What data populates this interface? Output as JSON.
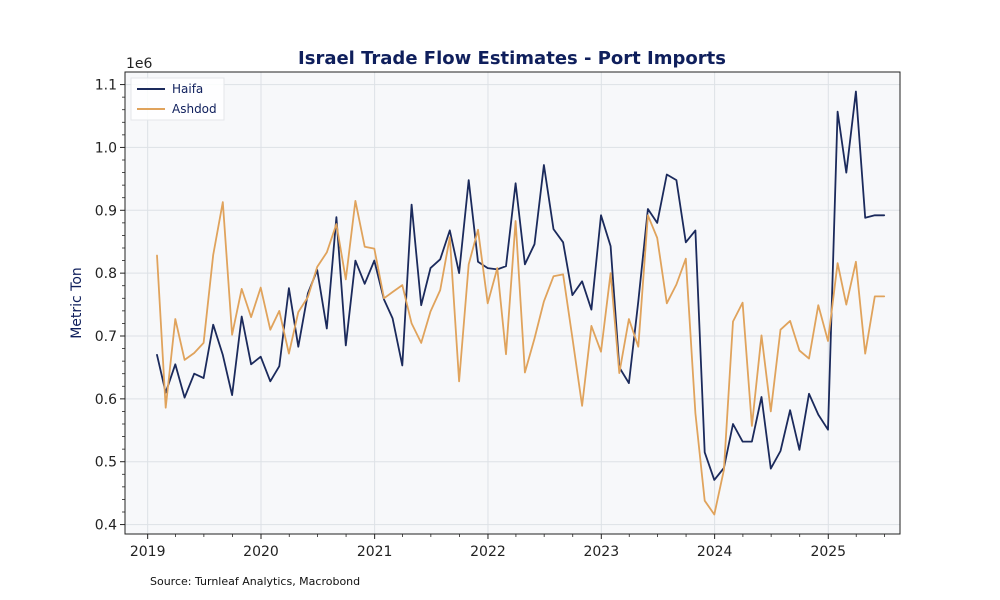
{
  "chart_data": {
    "type": "line",
    "title": "Israel Trade Flow Estimates - Port Imports",
    "ylabel": "Metric Ton",
    "xlabel": "",
    "y_offset_label": "1e6",
    "ylim": [
      0.385,
      1.12
    ],
    "y_ticks": [
      0.4,
      0.5,
      0.6,
      0.7,
      0.8,
      0.9,
      1.0,
      1.1
    ],
    "y_tick_labels": [
      "0.4",
      "0.5",
      "0.6",
      "0.7",
      "0.8",
      "0.9",
      "1.0",
      "1.1"
    ],
    "xlim": [
      "2018-10-20",
      "2025-08-20"
    ],
    "x_ticks": [
      "2019-01-01",
      "2020-01-01",
      "2021-01-01",
      "2022-01-01",
      "2023-01-01",
      "2024-01-01",
      "2025-01-01"
    ],
    "x_tick_labels": [
      "2019",
      "2020",
      "2021",
      "2022",
      "2023",
      "2024",
      "2025"
    ],
    "grid": true,
    "legend_position": "upper-left",
    "x": [
      "2019-01-31",
      "2019-02-28",
      "2019-03-31",
      "2019-04-30",
      "2019-05-31",
      "2019-06-30",
      "2019-07-31",
      "2019-08-31",
      "2019-09-30",
      "2019-10-31",
      "2019-11-30",
      "2019-12-31",
      "2020-01-31",
      "2020-02-29",
      "2020-03-31",
      "2020-04-30",
      "2020-05-31",
      "2020-06-30",
      "2020-07-31",
      "2020-08-31",
      "2020-09-30",
      "2020-10-31",
      "2020-11-30",
      "2020-12-31",
      "2021-01-31",
      "2021-02-28",
      "2021-03-31",
      "2021-04-30",
      "2021-05-31",
      "2021-06-30",
      "2021-07-31",
      "2021-08-31",
      "2021-09-30",
      "2021-10-31",
      "2021-11-30",
      "2021-12-31",
      "2022-01-31",
      "2022-02-28",
      "2022-03-31",
      "2022-04-30",
      "2022-05-31",
      "2022-06-30",
      "2022-07-31",
      "2022-08-31",
      "2022-09-30",
      "2022-10-31",
      "2022-11-30",
      "2022-12-31",
      "2023-01-31",
      "2023-02-28",
      "2023-03-31",
      "2023-04-30",
      "2023-05-31",
      "2023-06-30",
      "2023-07-31",
      "2023-08-31",
      "2023-09-30",
      "2023-10-31",
      "2023-11-30",
      "2023-12-31",
      "2024-01-31",
      "2024-02-29",
      "2024-03-31",
      "2024-04-30",
      "2024-05-31",
      "2024-06-30",
      "2024-07-31",
      "2024-08-31",
      "2024-09-30",
      "2024-10-31",
      "2024-11-30",
      "2024-12-31",
      "2025-01-31",
      "2025-02-28",
      "2025-03-31",
      "2025-04-30",
      "2025-05-31",
      "2025-06-30"
    ],
    "series": [
      {
        "name": "Haifa",
        "color": "#1b2a5c",
        "values": [
          0.67,
          0.61,
          0.655,
          0.602,
          0.64,
          0.633,
          0.718,
          0.67,
          0.606,
          0.731,
          0.655,
          0.667,
          0.628,
          0.652,
          0.776,
          0.683,
          0.768,
          0.805,
          0.712,
          0.889,
          0.685,
          0.82,
          0.783,
          0.82,
          0.758,
          0.728,
          0.653,
          0.909,
          0.749,
          0.808,
          0.822,
          0.868,
          0.8,
          0.948,
          0.818,
          0.808,
          0.806,
          0.811,
          0.943,
          0.814,
          0.846,
          0.972,
          0.87,
          0.849,
          0.765,
          0.787,
          0.742,
          0.892,
          0.843,
          0.65,
          0.625,
          0.755,
          0.902,
          0.88,
          0.957,
          0.948,
          0.849,
          0.868,
          0.515,
          0.471,
          0.49,
          0.56,
          0.532,
          0.532,
          0.603,
          0.489,
          0.517,
          0.582,
          0.519,
          0.608,
          0.575,
          0.551,
          1.057,
          0.96,
          1.089,
          0.888,
          0.892,
          0.892
        ]
      },
      {
        "name": "Ashdod",
        "color": "#e0a35c",
        "values": [
          0.828,
          0.586,
          0.727,
          0.662,
          0.673,
          0.689,
          0.829,
          0.913,
          0.702,
          0.775,
          0.73,
          0.777,
          0.71,
          0.74,
          0.672,
          0.738,
          0.762,
          0.81,
          0.833,
          0.878,
          0.79,
          0.915,
          0.842,
          0.839,
          0.76,
          0.77,
          0.781,
          0.72,
          0.689,
          0.739,
          0.773,
          0.857,
          0.628,
          0.814,
          0.869,
          0.752,
          0.808,
          0.671,
          0.883,
          0.642,
          0.696,
          0.755,
          0.795,
          0.798,
          0.697,
          0.589,
          0.716,
          0.675,
          0.8,
          0.641,
          0.727,
          0.683,
          0.892,
          0.856,
          0.752,
          0.782,
          0.823,
          0.577,
          0.438,
          0.416,
          0.487,
          0.723,
          0.753,
          0.557,
          0.701,
          0.58,
          0.71,
          0.724,
          0.677,
          0.664,
          0.749,
          0.692,
          0.816,
          0.75,
          0.818,
          0.672,
          0.763,
          0.763
        ]
      }
    ]
  },
  "source": "Source: Turnleaf Analytics, Macrobond",
  "colors": {
    "plot_bg": "#f7f8fa",
    "grid": "#dde1e6",
    "axis": "#222222"
  }
}
